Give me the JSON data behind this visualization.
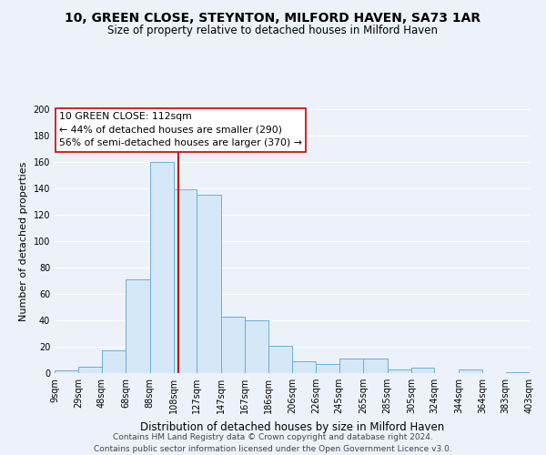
{
  "title": "10, GREEN CLOSE, STEYNTON, MILFORD HAVEN, SA73 1AR",
  "subtitle": "Size of property relative to detached houses in Milford Haven",
  "xlabel": "Distribution of detached houses by size in Milford Haven",
  "ylabel": "Number of detached properties",
  "bin_labels": [
    "9sqm",
    "29sqm",
    "48sqm",
    "68sqm",
    "88sqm",
    "108sqm",
    "127sqm",
    "147sqm",
    "167sqm",
    "186sqm",
    "206sqm",
    "226sqm",
    "245sqm",
    "265sqm",
    "285sqm",
    "305sqm",
    "324sqm",
    "344sqm",
    "364sqm",
    "383sqm",
    "403sqm"
  ],
  "bin_edges": [
    9,
    29,
    48,
    68,
    88,
    108,
    127,
    147,
    167,
    186,
    206,
    226,
    245,
    265,
    285,
    305,
    324,
    344,
    364,
    383,
    403
  ],
  "bar_heights": [
    2,
    5,
    17,
    71,
    160,
    139,
    135,
    43,
    40,
    21,
    9,
    7,
    11,
    11,
    3,
    4,
    0,
    3,
    0,
    1
  ],
  "bar_face_color": "#d6e8f7",
  "bar_edge_color": "#6aaed6",
  "vline_x": 112,
  "vline_color": "#cc0000",
  "annotation_lines": [
    "10 GREEN CLOSE: 112sqm",
    "← 44% of detached houses are smaller (290)",
    "56% of semi-detached houses are larger (370) →"
  ],
  "ylim": [
    0,
    200
  ],
  "yticks": [
    0,
    20,
    40,
    60,
    80,
    100,
    120,
    140,
    160,
    180,
    200
  ],
  "footer_line1": "Contains HM Land Registry data © Crown copyright and database right 2024.",
  "footer_line2": "Contains public sector information licensed under the Open Government Licence v3.0.",
  "background_color": "#edf2fa",
  "grid_color": "#ffffff",
  "title_fontsize": 10,
  "subtitle_fontsize": 8.5,
  "xlabel_fontsize": 8.5,
  "ylabel_fontsize": 8,
  "annotation_fontsize": 7.8,
  "footer_fontsize": 6.5,
  "tick_fontsize": 7
}
